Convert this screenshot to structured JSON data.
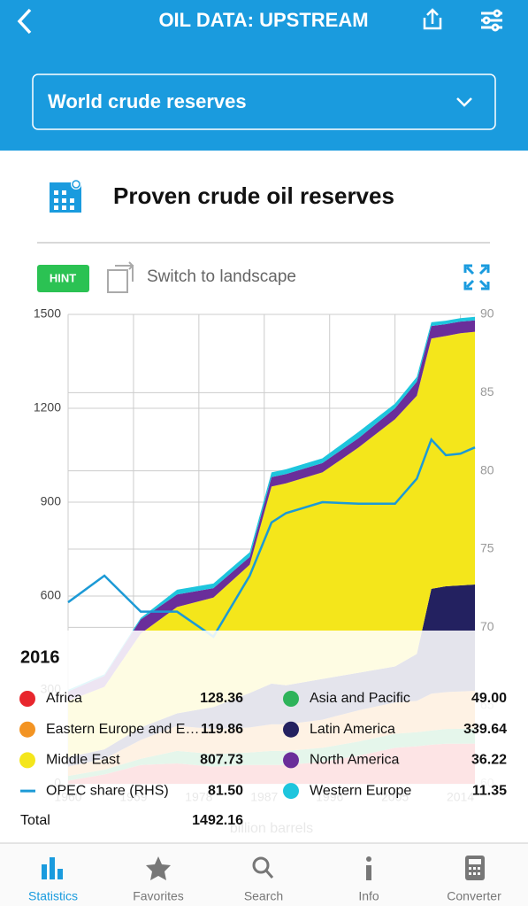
{
  "header": {
    "title": "OIL DATA: UPSTREAM"
  },
  "selector": "World crude reserves",
  "section_title": "Proven crude oil reserves",
  "hint": "HINT",
  "switch_text": "Switch to landscape",
  "chart_data": {
    "type": "area",
    "ylabel": "billion barrels",
    "x": [
      1960,
      1965,
      1970,
      1975,
      1980,
      1985,
      1988,
      1990,
      1995,
      2000,
      2005,
      2008,
      2010,
      2012,
      2014,
      2016
    ],
    "xlim": [
      1960,
      2016
    ],
    "xticks": [
      1960,
      1969,
      1978,
      1987,
      1996,
      2005,
      2014
    ],
    "ylim": [
      0,
      1500
    ],
    "yticks": [
      0,
      300,
      600,
      900,
      1200,
      1500
    ],
    "y2lim": [
      60,
      90
    ],
    "y2ticks": [
      60,
      65,
      70,
      75,
      80,
      85,
      90
    ],
    "grid": true,
    "series": [
      {
        "name": "Africa",
        "color": "#e8262d",
        "values": [
          10,
          30,
          60,
          65,
          55,
          60,
          60,
          60,
          70,
          90,
          115,
          120,
          125,
          128,
          128,
          128.36
        ]
      },
      {
        "name": "Asia and Pacific",
        "color": "#2eb35a",
        "values": [
          15,
          15,
          20,
          40,
          40,
          40,
          45,
          45,
          45,
          45,
          45,
          45,
          45,
          47,
          48,
          49.0
        ]
      },
      {
        "name": "Eastern Europe and E…",
        "color": "#f39423",
        "values": [
          30,
          35,
          60,
          80,
          80,
          80,
          85,
          85,
          90,
          100,
          100,
          100,
          118,
          118,
          119,
          119.86
        ]
      },
      {
        "name": "Latin America",
        "color": "#232160",
        "values": [
          30,
          30,
          40,
          40,
          70,
          110,
          130,
          125,
          130,
          120,
          115,
          150,
          335,
          338,
          339,
          339.64
        ]
      },
      {
        "name": "Middle East",
        "color": "#f4e61b",
        "values": [
          180,
          200,
          300,
          340,
          350,
          410,
          630,
          645,
          660,
          720,
          790,
          825,
          800,
          800,
          806,
          807.73
        ]
      },
      {
        "name": "North America",
        "color": "#6a2e9a",
        "values": [
          30,
          35,
          45,
          40,
          30,
          25,
          30,
          30,
          30,
          30,
          35,
          45,
          40,
          38,
          37,
          36.22
        ]
      },
      {
        "name": "OPEC share (RHS)",
        "color": "#1c9ad6",
        "axis": "y2",
        "values": [
          71.6,
          73.3,
          71,
          71,
          69.4,
          73.3,
          76.7,
          77.3,
          78,
          77.9,
          77.9,
          79.5,
          82,
          81,
          81.1,
          81.5
        ]
      },
      {
        "name": "Western Europe",
        "color": "#1ec5dd",
        "values": [
          5,
          5,
          5,
          15,
          15,
          15,
          15,
          15,
          15,
          20,
          15,
          15,
          12,
          11,
          11,
          11.35
        ]
      }
    ]
  },
  "readout": {
    "title": "2016",
    "values": [
      "128.36",
      "49.00",
      "119.86",
      "339.64",
      "807.73",
      "36.22",
      "81.50",
      "11.35"
    ],
    "total_label": "Total",
    "total": "1492.16"
  },
  "tabs": [
    "Statistics",
    "Favorites",
    "Search",
    "Info",
    "Converter"
  ]
}
